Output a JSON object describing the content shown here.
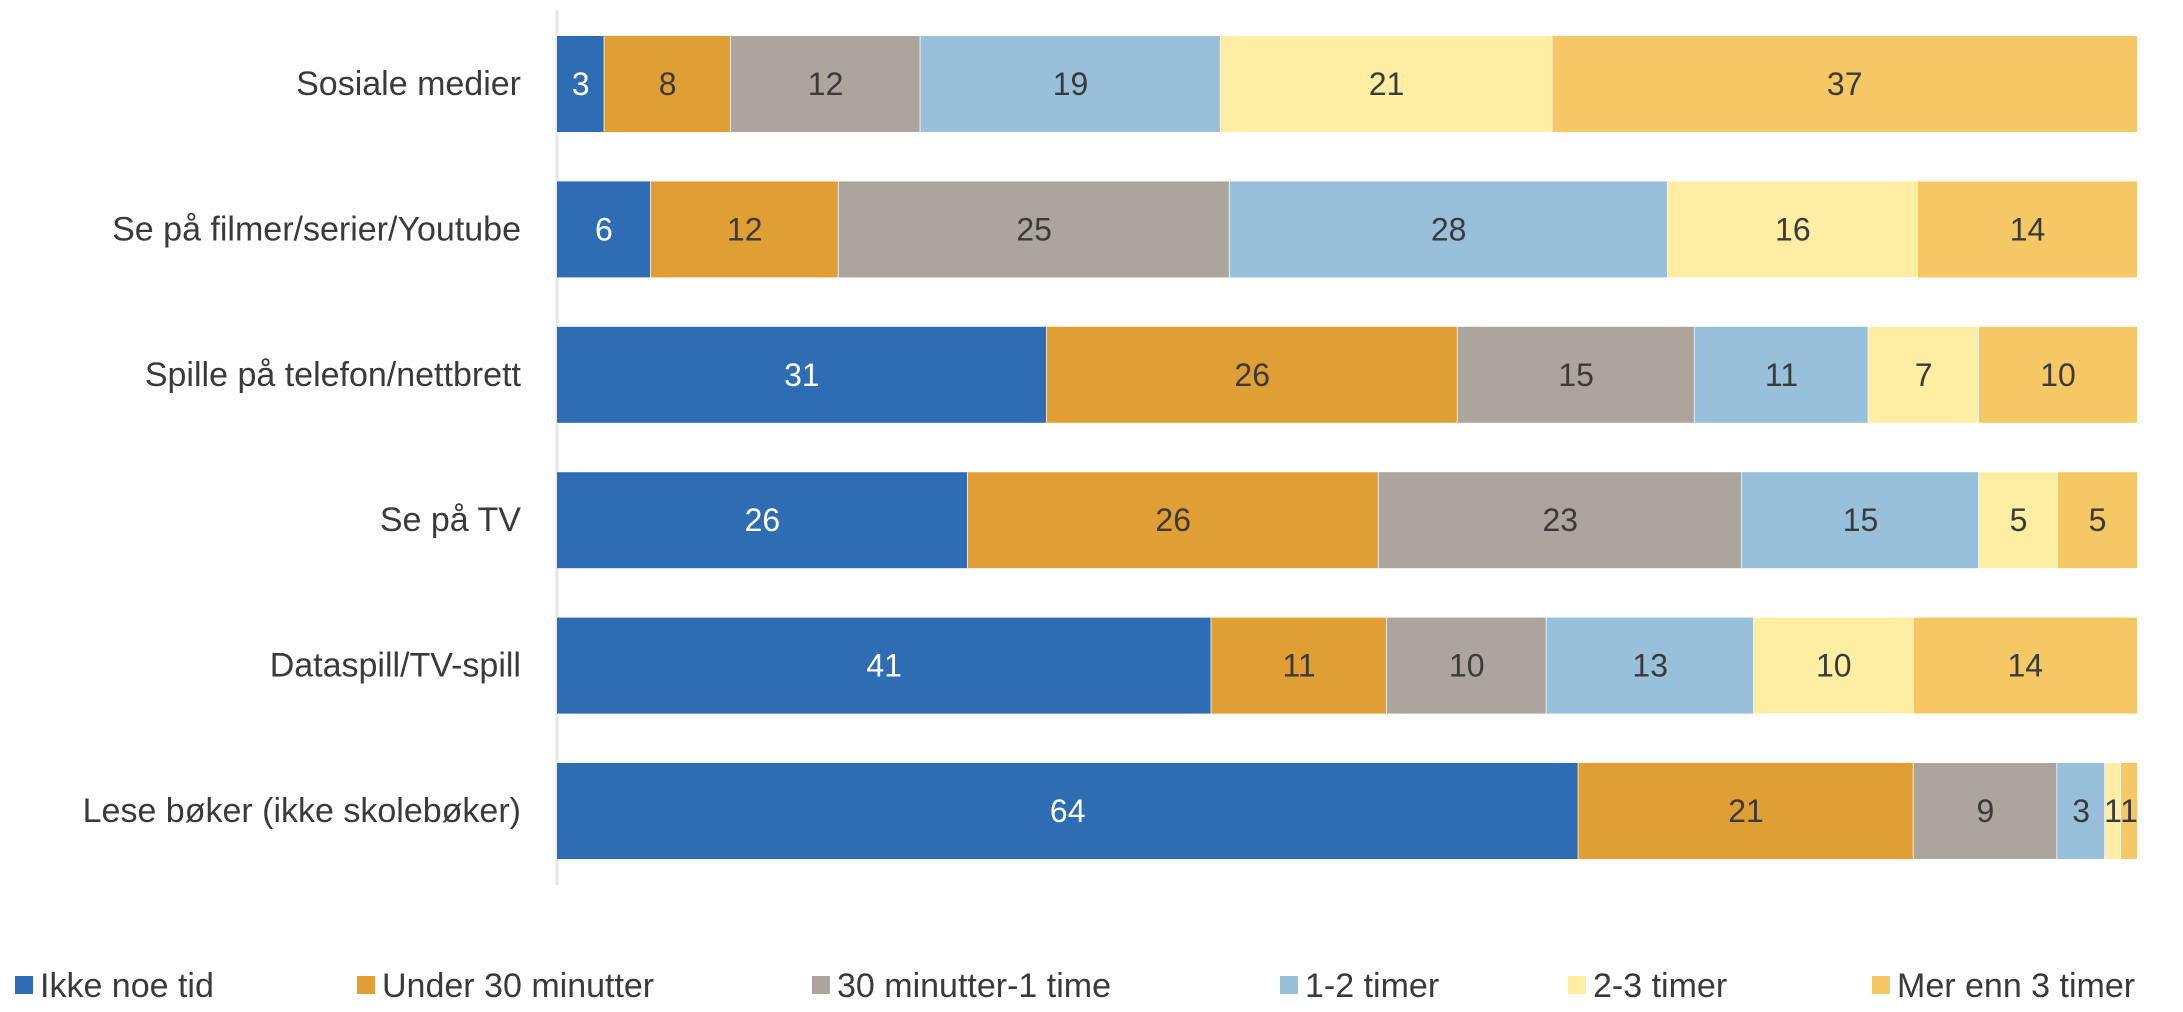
{
  "chart_data": {
    "type": "bar",
    "orientation": "horizontal",
    "stacked": true,
    "categories": [
      "Sosiale medier",
      "Se på filmer/serier/Youtube",
      "Spille på telefon/nettbrett",
      "Se på TV",
      "Dataspill/TV-spill",
      "Lese bøker (ikke skolebøker)"
    ],
    "series": [
      {
        "name": "Ikke noe tid",
        "color": "#2e6db4",
        "label_color": "#ffffff",
        "values": [
          3,
          6,
          31,
          26,
          41,
          64
        ]
      },
      {
        "name": "Under 30 minutter",
        "color": "#e09f35",
        "label_color": "#3a3a3a",
        "values": [
          8,
          12,
          26,
          26,
          11,
          21
        ]
      },
      {
        "name": "30 minutter-1 time",
        "color": "#aca59e",
        "label_color": "#3a3a3a",
        "values": [
          12,
          25,
          15,
          23,
          10,
          9
        ]
      },
      {
        "name": "1-2 timer",
        "color": "#99c0db",
        "label_color": "#3a3a3a",
        "values": [
          19,
          28,
          11,
          15,
          13,
          3
        ]
      },
      {
        "name": "2-3 timer",
        "color": "#fdeea3",
        "label_color": "#3a3a3a",
        "values": [
          21,
          16,
          7,
          5,
          10,
          1
        ]
      },
      {
        "name": "Mer enn 3 timer",
        "color": "#f6c865",
        "label_color": "#3a3a3a",
        "values": [
          37,
          14,
          10,
          5,
          14,
          1
        ]
      }
    ],
    "legend_position": "bottom",
    "grid": false,
    "axis_visible": false
  }
}
